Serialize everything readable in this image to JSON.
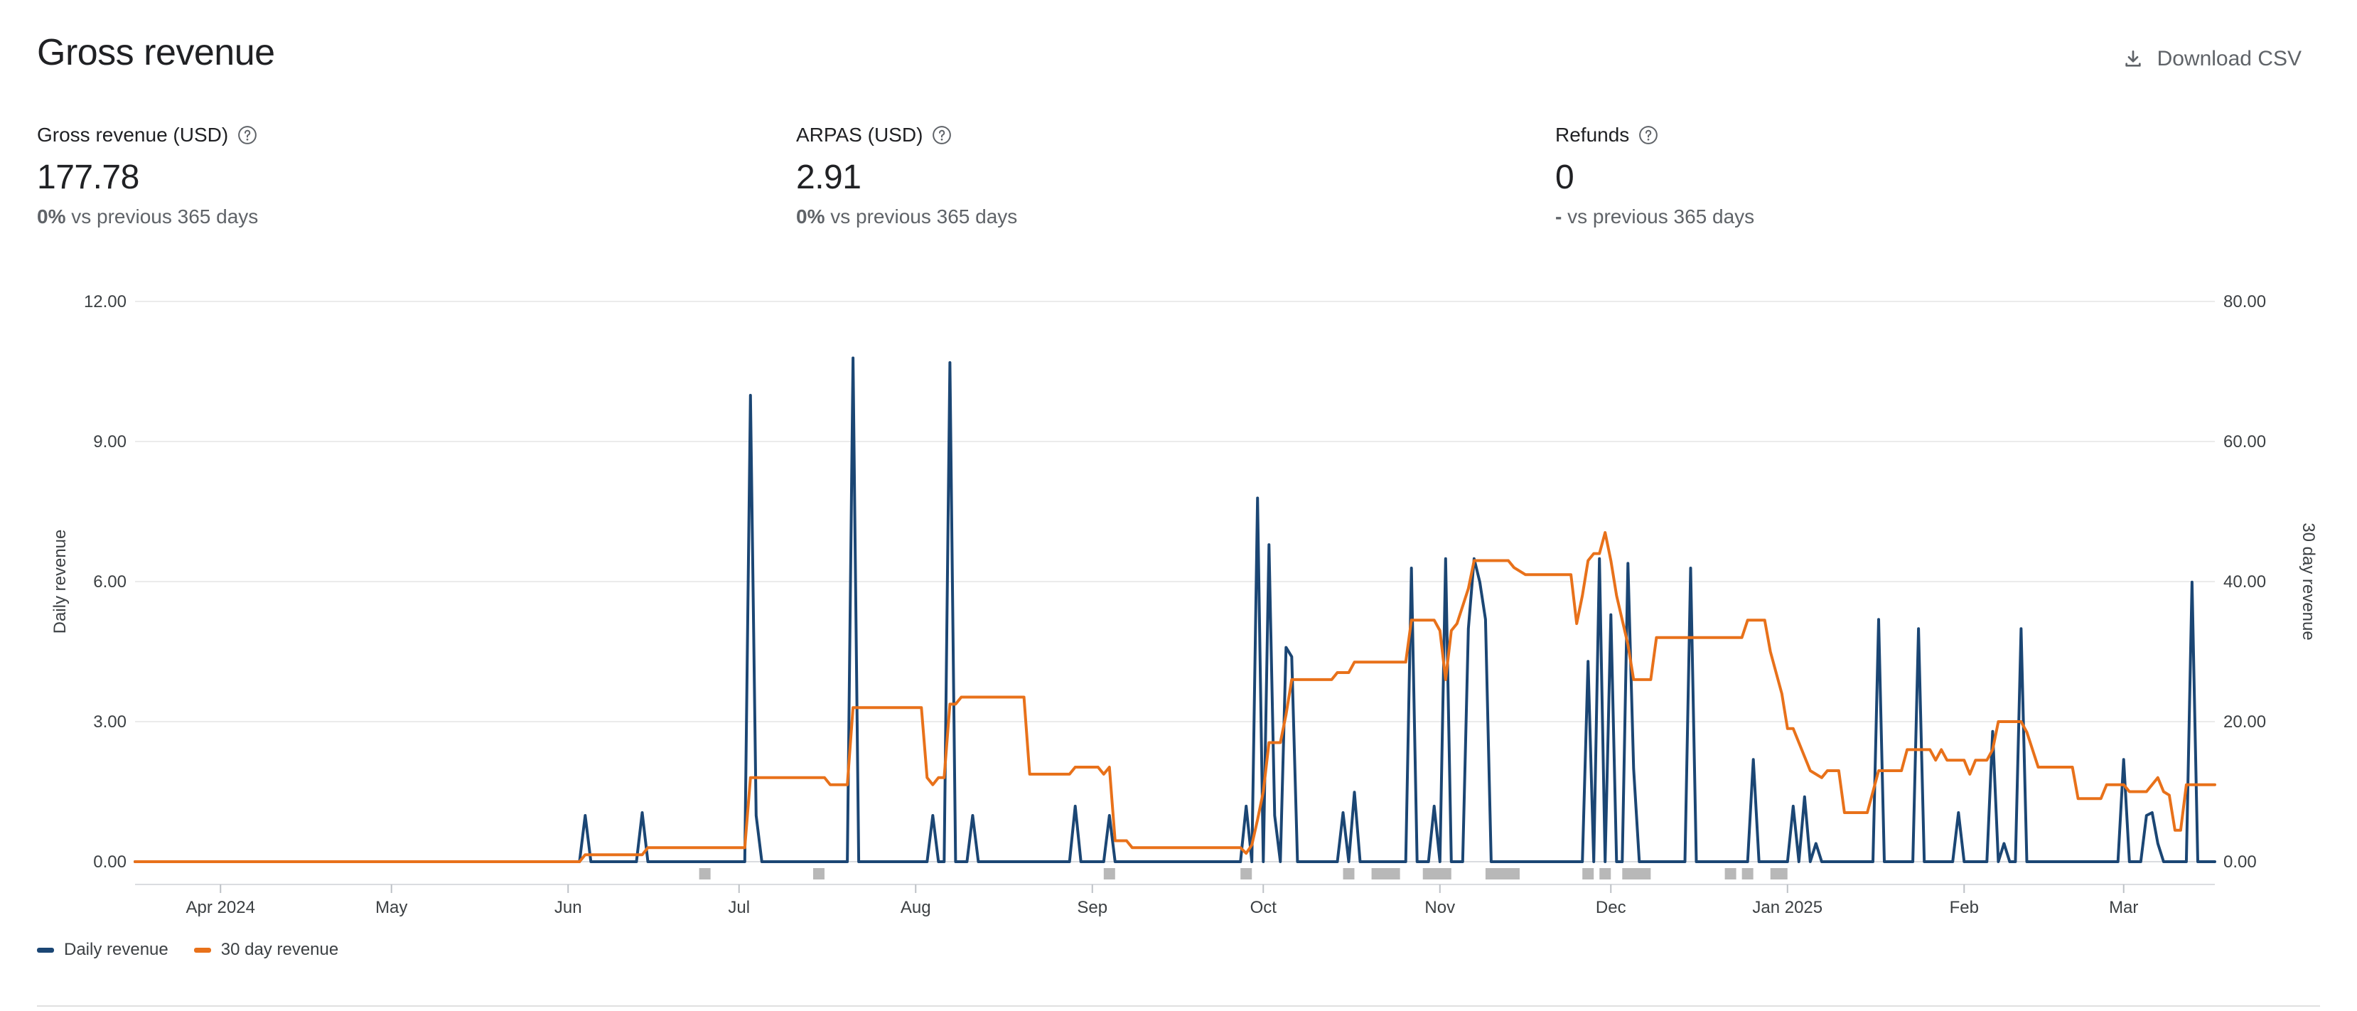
{
  "header": {
    "title": "Gross revenue",
    "download_label": "Download CSV"
  },
  "metrics": [
    {
      "label": "Gross revenue (USD)",
      "value": "177.78",
      "compare_value": "0%",
      "compare_text": " vs previous 365 days"
    },
    {
      "label": "ARPAS (USD)",
      "value": "2.91",
      "compare_value": "0%",
      "compare_text": " vs previous 365 days"
    },
    {
      "label": "Refunds",
      "value": "0",
      "compare_value": "-",
      "compare_text": " vs previous 365 days"
    }
  ],
  "legend": [
    {
      "name": "Daily revenue",
      "color": "#1b4674"
    },
    {
      "name": "30 day revenue",
      "color": "#e8711a"
    }
  ],
  "chart_data": {
    "type": "line",
    "x_domain": [
      "2024-03-17",
      "2025-03-17"
    ],
    "x_tick_labels": [
      "Apr 2024",
      "May",
      "Jun",
      "Jul",
      "Aug",
      "Sep",
      "Oct",
      "Nov",
      "Dec",
      "Jan 2025",
      "Feb",
      "Mar"
    ],
    "y_left_label": "Daily revenue",
    "y_left_ticks": [
      "0.00",
      "3.00",
      "6.00",
      "9.00",
      "12.00"
    ],
    "y_left_range": [
      0,
      12
    ],
    "y_right_label": "30 day revenue",
    "y_right_ticks": [
      "0.00",
      "20.00",
      "40.00",
      "60.00",
      "80.00"
    ],
    "y_right_range": [
      0,
      80
    ],
    "grid": true,
    "series": [
      {
        "name": "Daily revenue",
        "axis": "left",
        "color": "#1b4674",
        "points": [
          [
            "2024-03-17",
            0
          ],
          [
            "2024-06-03",
            0
          ],
          [
            "2024-06-04",
            0.99
          ],
          [
            "2024-06-05",
            0
          ],
          [
            "2024-06-13",
            0
          ],
          [
            "2024-06-14",
            1.05
          ],
          [
            "2024-06-15",
            0
          ],
          [
            "2024-07-02",
            0
          ],
          [
            "2024-07-03",
            9.99
          ],
          [
            "2024-07-04",
            0.99
          ],
          [
            "2024-07-05",
            0
          ],
          [
            "2024-07-20",
            0
          ],
          [
            "2024-07-21",
            10.79
          ],
          [
            "2024-07-22",
            0
          ],
          [
            "2024-08-03",
            0
          ],
          [
            "2024-08-04",
            0.99
          ],
          [
            "2024-08-05",
            0
          ],
          [
            "2024-08-06",
            0
          ],
          [
            "2024-08-07",
            10.69
          ],
          [
            "2024-08-08",
            0
          ],
          [
            "2024-08-10",
            0
          ],
          [
            "2024-08-11",
            0.99
          ],
          [
            "2024-08-12",
            0
          ],
          [
            "2024-08-28",
            0
          ],
          [
            "2024-08-29",
            1.19
          ],
          [
            "2024-08-30",
            0
          ],
          [
            "2024-09-03",
            0
          ],
          [
            "2024-09-04",
            0.99
          ],
          [
            "2024-09-05",
            0
          ],
          [
            "2024-09-27",
            0
          ],
          [
            "2024-09-28",
            1.19
          ],
          [
            "2024-09-29",
            0
          ],
          [
            "2024-09-30",
            7.79
          ],
          [
            "2024-10-01",
            0
          ],
          [
            "2024-10-02",
            6.79
          ],
          [
            "2024-10-03",
            0.99
          ],
          [
            "2024-10-04",
            0
          ],
          [
            "2024-10-05",
            4.59
          ],
          [
            "2024-10-06",
            4.39
          ],
          [
            "2024-10-07",
            0
          ],
          [
            "2024-10-14",
            0
          ],
          [
            "2024-10-15",
            1.05
          ],
          [
            "2024-10-16",
            0
          ],
          [
            "2024-10-17",
            1.49
          ],
          [
            "2024-10-18",
            0
          ],
          [
            "2024-10-26",
            0
          ],
          [
            "2024-10-27",
            6.29
          ],
          [
            "2024-10-28",
            0
          ],
          [
            "2024-10-30",
            0
          ],
          [
            "2024-10-31",
            1.19
          ],
          [
            "2024-11-01",
            0
          ],
          [
            "2024-11-02",
            6.49
          ],
          [
            "2024-11-03",
            0
          ],
          [
            "2024-11-05",
            0
          ],
          [
            "2024-11-06",
            4.99
          ],
          [
            "2024-11-07",
            6.49
          ],
          [
            "2024-11-08",
            5.99
          ],
          [
            "2024-11-09",
            5.19
          ],
          [
            "2024-11-10",
            0
          ],
          [
            "2024-11-26",
            0
          ],
          [
            "2024-11-27",
            4.29
          ],
          [
            "2024-11-28",
            0
          ],
          [
            "2024-11-29",
            6.49
          ],
          [
            "2024-11-30",
            0
          ],
          [
            "2024-12-01",
            5.29
          ],
          [
            "2024-12-02",
            0
          ],
          [
            "2024-12-03",
            0
          ],
          [
            "2024-12-04",
            6.39
          ],
          [
            "2024-12-05",
            1.99
          ],
          [
            "2024-12-06",
            0
          ],
          [
            "2024-12-14",
            0
          ],
          [
            "2024-12-15",
            6.29
          ],
          [
            "2024-12-16",
            0
          ],
          [
            "2024-12-25",
            0
          ],
          [
            "2024-12-26",
            2.19
          ],
          [
            "2024-12-27",
            0
          ],
          [
            "2025-01-01",
            0
          ],
          [
            "2025-01-02",
            1.19
          ],
          [
            "2025-01-03",
            0
          ],
          [
            "2025-01-04",
            1.39
          ],
          [
            "2025-01-05",
            0
          ],
          [
            "2025-01-06",
            0.39
          ],
          [
            "2025-01-07",
            0
          ],
          [
            "2025-01-16",
            0
          ],
          [
            "2025-01-17",
            5.19
          ],
          [
            "2025-01-18",
            0
          ],
          [
            "2025-01-23",
            0
          ],
          [
            "2025-01-24",
            4.99
          ],
          [
            "2025-01-25",
            0
          ],
          [
            "2025-01-30",
            0
          ],
          [
            "2025-01-31",
            1.05
          ],
          [
            "2025-02-01",
            0
          ],
          [
            "2025-02-05",
            0
          ],
          [
            "2025-02-06",
            2.79
          ],
          [
            "2025-02-07",
            0
          ],
          [
            "2025-02-08",
            0.39
          ],
          [
            "2025-02-09",
            0
          ],
          [
            "2025-02-10",
            0
          ],
          [
            "2025-02-11",
            4.99
          ],
          [
            "2025-02-12",
            0
          ],
          [
            "2025-02-28",
            0
          ],
          [
            "2025-03-01",
            2.19
          ],
          [
            "2025-03-02",
            0
          ],
          [
            "2025-03-03",
            0
          ],
          [
            "2025-03-04",
            0
          ],
          [
            "2025-03-05",
            0.99
          ],
          [
            "2025-03-06",
            1.05
          ],
          [
            "2025-03-07",
            0.39
          ],
          [
            "2025-03-08",
            0
          ],
          [
            "2025-03-12",
            0
          ],
          [
            "2025-03-13",
            5.99
          ],
          [
            "2025-03-14",
            0
          ],
          [
            "2025-03-17",
            0
          ]
        ]
      },
      {
        "name": "30 day revenue",
        "axis": "right",
        "color": "#e8711a",
        "points": [
          [
            "2024-03-17",
            0
          ],
          [
            "2024-06-03",
            0
          ],
          [
            "2024-06-04",
            1
          ],
          [
            "2024-06-14",
            1
          ],
          [
            "2024-06-15",
            2
          ],
          [
            "2024-07-02",
            2
          ],
          [
            "2024-07-03",
            12
          ],
          [
            "2024-07-16",
            12
          ],
          [
            "2024-07-17",
            11
          ],
          [
            "2024-07-20",
            11
          ],
          [
            "2024-07-21",
            22
          ],
          [
            "2024-08-02",
            22
          ],
          [
            "2024-08-03",
            12
          ],
          [
            "2024-08-04",
            11
          ],
          [
            "2024-08-05",
            12
          ],
          [
            "2024-08-06",
            12
          ],
          [
            "2024-08-07",
            22.5
          ],
          [
            "2024-08-08",
            22.5
          ],
          [
            "2024-08-09",
            23.5
          ],
          [
            "2024-08-20",
            23.5
          ],
          [
            "2024-08-21",
            12.5
          ],
          [
            "2024-08-28",
            12.5
          ],
          [
            "2024-08-29",
            13.5
          ],
          [
            "2024-09-02",
            13.5
          ],
          [
            "2024-09-03",
            12.5
          ],
          [
            "2024-09-04",
            13.5
          ],
          [
            "2024-09-05",
            3
          ],
          [
            "2024-09-07",
            3
          ],
          [
            "2024-09-08",
            2
          ],
          [
            "2024-09-27",
            2
          ],
          [
            "2024-09-28",
            1.2
          ],
          [
            "2024-09-29",
            2.4
          ],
          [
            "2024-09-30",
            6
          ],
          [
            "2024-10-01",
            10
          ],
          [
            "2024-10-02",
            17
          ],
          [
            "2024-10-04",
            17
          ],
          [
            "2024-10-05",
            21
          ],
          [
            "2024-10-06",
            26
          ],
          [
            "2024-10-13",
            26
          ],
          [
            "2024-10-14",
            27
          ],
          [
            "2024-10-16",
            27
          ],
          [
            "2024-10-17",
            28.5
          ],
          [
            "2024-10-26",
            28.5
          ],
          [
            "2024-10-27",
            34.5
          ],
          [
            "2024-10-31",
            34.5
          ],
          [
            "2024-11-01",
            33
          ],
          [
            "2024-11-02",
            26
          ],
          [
            "2024-11-03",
            33
          ],
          [
            "2024-11-04",
            34
          ],
          [
            "2024-11-06",
            39
          ],
          [
            "2024-11-07",
            43
          ],
          [
            "2024-11-13",
            43
          ],
          [
            "2024-11-14",
            42
          ],
          [
            "2024-11-16",
            41
          ],
          [
            "2024-11-24",
            41
          ],
          [
            "2024-11-25",
            34
          ],
          [
            "2024-11-26",
            38
          ],
          [
            "2024-11-27",
            43
          ],
          [
            "2024-11-28",
            44
          ],
          [
            "2024-11-29",
            44
          ],
          [
            "2024-11-30",
            47
          ],
          [
            "2024-12-01",
            43
          ],
          [
            "2024-12-02",
            38
          ],
          [
            "2024-12-04",
            31
          ],
          [
            "2024-12-05",
            26
          ],
          [
            "2024-12-08",
            26
          ],
          [
            "2024-12-09",
            32
          ],
          [
            "2024-12-24",
            32
          ],
          [
            "2024-12-25",
            34.5
          ],
          [
            "2024-12-28",
            34.5
          ],
          [
            "2024-12-29",
            30
          ],
          [
            "2024-12-31",
            24
          ],
          [
            "2025-01-01",
            19
          ],
          [
            "2025-01-02",
            19
          ],
          [
            "2025-01-03",
            17
          ],
          [
            "2025-01-05",
            13
          ],
          [
            "2025-01-07",
            12
          ],
          [
            "2025-01-08",
            13
          ],
          [
            "2025-01-10",
            13
          ],
          [
            "2025-01-11",
            7
          ],
          [
            "2025-01-15",
            7
          ],
          [
            "2025-01-17",
            13
          ],
          [
            "2025-01-21",
            13
          ],
          [
            "2025-01-22",
            16
          ],
          [
            "2025-01-26",
            16
          ],
          [
            "2025-01-27",
            14.5
          ],
          [
            "2025-01-28",
            16
          ],
          [
            "2025-01-29",
            14.5
          ],
          [
            "2025-02-01",
            14.5
          ],
          [
            "2025-02-02",
            12.5
          ],
          [
            "2025-02-03",
            14.5
          ],
          [
            "2025-02-05",
            14.5
          ],
          [
            "2025-02-06",
            16
          ],
          [
            "2025-02-07",
            20
          ],
          [
            "2025-02-11",
            20
          ],
          [
            "2025-02-12",
            18.5
          ],
          [
            "2025-02-14",
            13.5
          ],
          [
            "2025-02-20",
            13.5
          ],
          [
            "2025-02-21",
            9
          ],
          [
            "2025-02-25",
            9
          ],
          [
            "2025-02-26",
            11
          ],
          [
            "2025-03-01",
            11
          ],
          [
            "2025-03-02",
            10
          ],
          [
            "2025-03-05",
            10
          ],
          [
            "2025-03-07",
            12
          ],
          [
            "2025-03-08",
            10
          ],
          [
            "2025-03-09",
            9.5
          ],
          [
            "2025-03-10",
            4.5
          ],
          [
            "2025-03-11",
            4.5
          ],
          [
            "2025-03-12",
            11
          ],
          [
            "2025-03-17",
            11
          ]
        ]
      }
    ],
    "marker_dates": [
      "2024-06-25",
      "2024-07-15",
      "2024-09-04",
      "2024-09-28",
      "2024-10-16",
      "2024-10-21",
      "2024-10-22",
      "2024-10-23",
      "2024-10-24",
      "2024-10-30",
      "2024-10-31",
      "2024-11-01",
      "2024-11-02",
      "2024-11-10",
      "2024-11-11",
      "2024-11-12",
      "2024-11-13",
      "2024-11-14",
      "2024-11-27",
      "2024-11-30",
      "2024-12-04",
      "2024-12-05",
      "2024-12-06",
      "2024-12-07",
      "2024-12-22",
      "2024-12-25",
      "2024-12-30",
      "2024-12-31"
    ]
  }
}
